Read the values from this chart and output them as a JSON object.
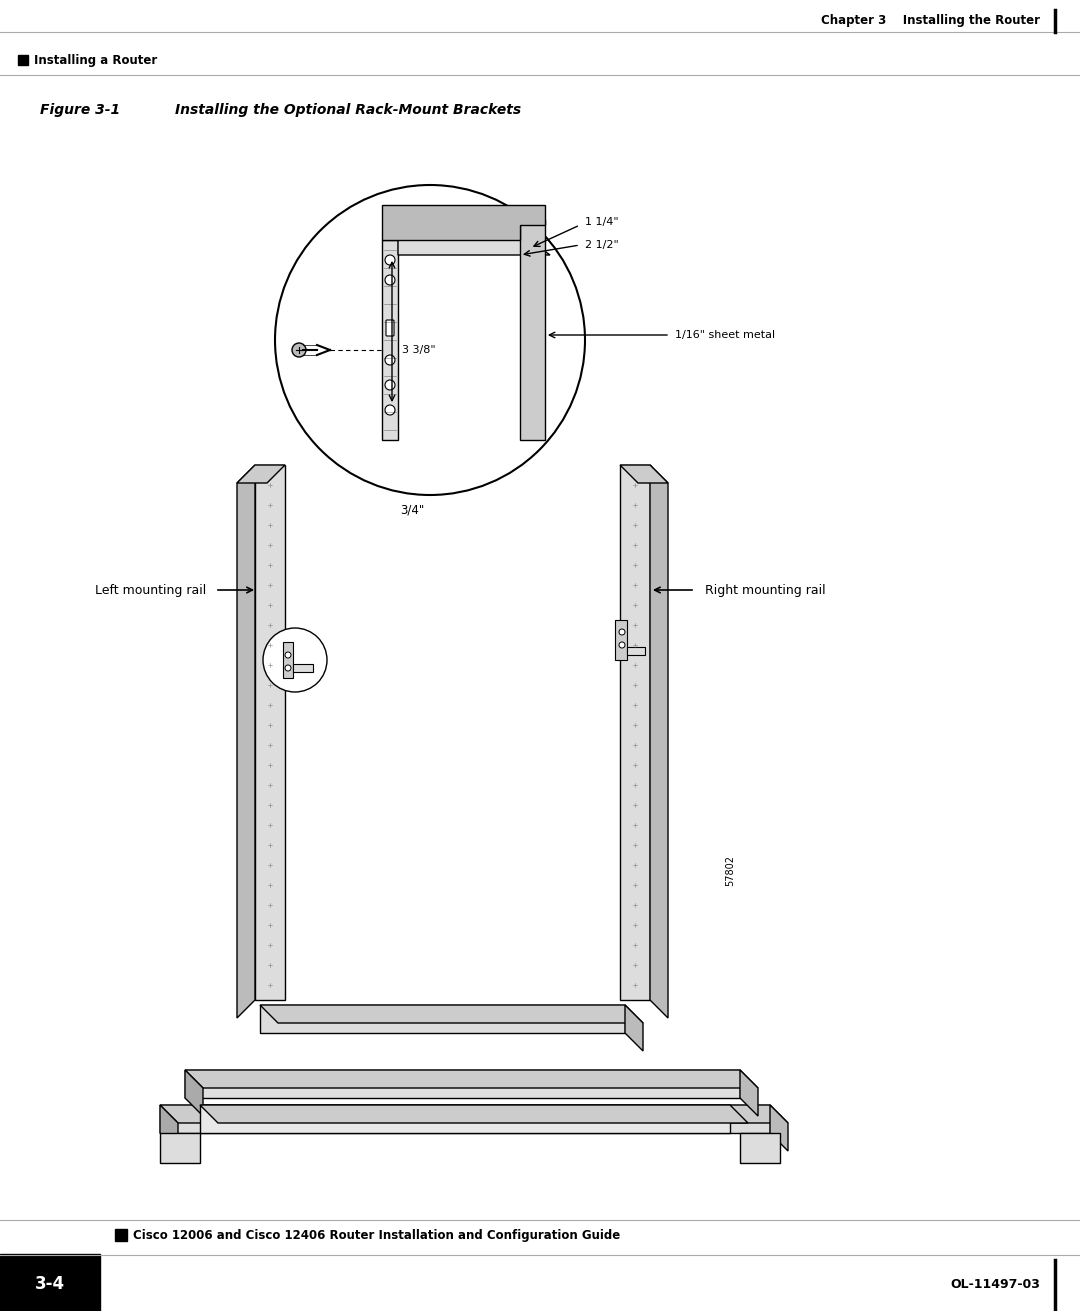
{
  "bg_color": "#ffffff",
  "header_line_color": "#aaaaaa",
  "header_chapter_text": "Chapter 3    Installing the Router",
  "header_section_text": "Installing a Router",
  "figure_label": "Figure 3-1",
  "figure_title": "Installing the Optional Rack-Mount Brackets",
  "label_left_rail": "Left mounting rail",
  "label_right_rail": "Right mounting rail",
  "label_1_14": "1 1/4\"",
  "label_2_12": "2 1/2\"",
  "label_sheet_metal": "1/16\" sheet metal",
  "label_3_38": "3 3/8\"",
  "label_3_4": "3/4\"",
  "figure_number": "57802",
  "footer_title": "Cisco 12006 and Cisco 12406 Router Installation and Configuration Guide",
  "footer_page": "3-4",
  "footer_doc": "OL-11497-03",
  "text_color": "#000000",
  "light_gray": "#cccccc",
  "mid_gray": "#999999",
  "dark_gray": "#666666"
}
